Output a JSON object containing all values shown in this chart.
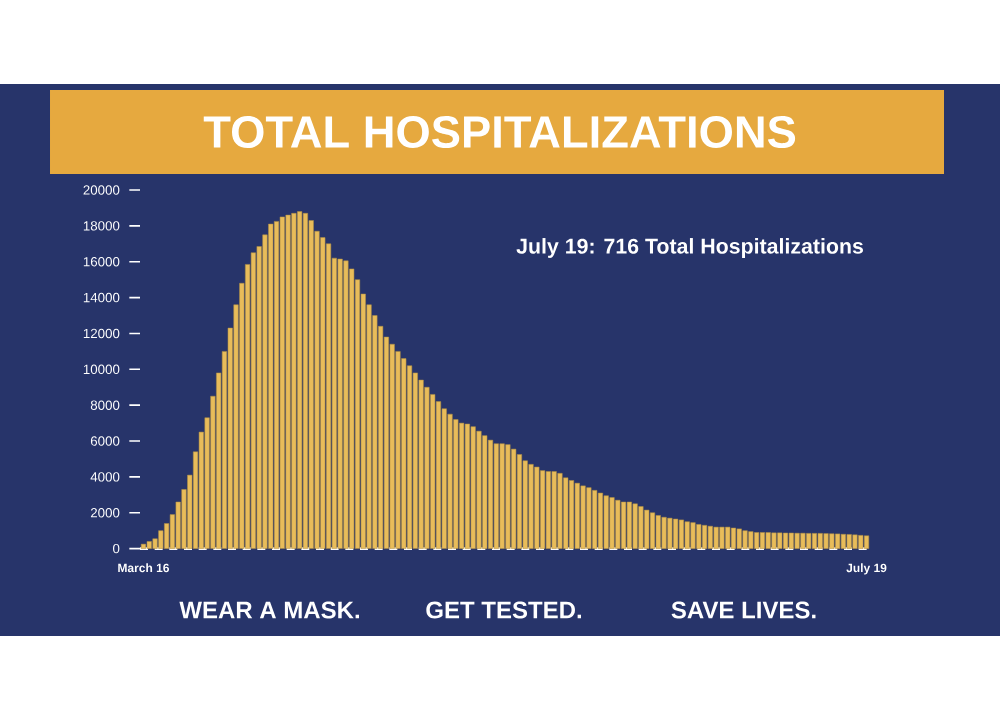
{
  "chart_data": {
    "type": "bar",
    "title": "TOTAL HOSPITALIZATIONS",
    "categories": [
      "March 16",
      null,
      null,
      null,
      null,
      null,
      null,
      null,
      null,
      null,
      null,
      null,
      null,
      null,
      null,
      null,
      null,
      null,
      null,
      null,
      null,
      null,
      null,
      null,
      null,
      null,
      null,
      null,
      null,
      null,
      null,
      null,
      null,
      null,
      null,
      null,
      null,
      null,
      null,
      null,
      null,
      null,
      null,
      null,
      null,
      null,
      null,
      null,
      null,
      null,
      null,
      null,
      null,
      null,
      null,
      null,
      null,
      null,
      null,
      null,
      null,
      null,
      null,
      null,
      null,
      null,
      null,
      null,
      null,
      null,
      null,
      null,
      null,
      null,
      null,
      null,
      null,
      null,
      null,
      null,
      null,
      null,
      null,
      null,
      null,
      null,
      null,
      null,
      null,
      null,
      null,
      null,
      null,
      null,
      null,
      null,
      null,
      null,
      null,
      null,
      null,
      null,
      null,
      null,
      null,
      null,
      null,
      null,
      null,
      null,
      null,
      null,
      null,
      null,
      null,
      null,
      null,
      null,
      null,
      null,
      null,
      null,
      null,
      null,
      null,
      "July 19"
    ],
    "values": [
      250,
      400,
      550,
      1000,
      1400,
      1900,
      2600,
      3300,
      4100,
      5400,
      6500,
      7300,
      8500,
      9800,
      11000,
      12300,
      13600,
      14800,
      15850,
      16500,
      16850,
      17500,
      18100,
      18250,
      18500,
      18600,
      18700,
      18800,
      18700,
      18300,
      17700,
      17350,
      17000,
      16200,
      16150,
      16050,
      15600,
      15000,
      14200,
      13600,
      13000,
      12400,
      11800,
      11400,
      11000,
      10600,
      10200,
      9800,
      9400,
      9000,
      8600,
      8200,
      7800,
      7500,
      7200,
      7000,
      6950,
      6800,
      6550,
      6300,
      6050,
      5850,
      5850,
      5800,
      5550,
      5250,
      4900,
      4700,
      4550,
      4350,
      4300,
      4300,
      4200,
      3950,
      3800,
      3650,
      3500,
      3400,
      3250,
      3100,
      2950,
      2850,
      2700,
      2600,
      2600,
      2500,
      2350,
      2150,
      2000,
      1850,
      1750,
      1700,
      1650,
      1600,
      1500,
      1450,
      1350,
      1300,
      1250,
      1200,
      1200,
      1200,
      1150,
      1100,
      1000,
      950,
      900,
      900,
      900,
      880,
      880,
      870,
      870,
      860,
      860,
      850,
      850,
      850,
      840,
      830,
      820,
      800,
      790,
      770,
      740,
      716
    ],
    "color": "#e8bc5a",
    "ylim": [
      0,
      20000
    ],
    "yticks": [
      0,
      2000,
      4000,
      6000,
      8000,
      10000,
      12000,
      14000,
      16000,
      18000,
      20000
    ],
    "annotations": [
      "July 19: 716 Total Hospitalizations",
      "WEAR A MASK.",
      "GET TESTED.",
      "SAVE LIVES."
    ]
  }
}
